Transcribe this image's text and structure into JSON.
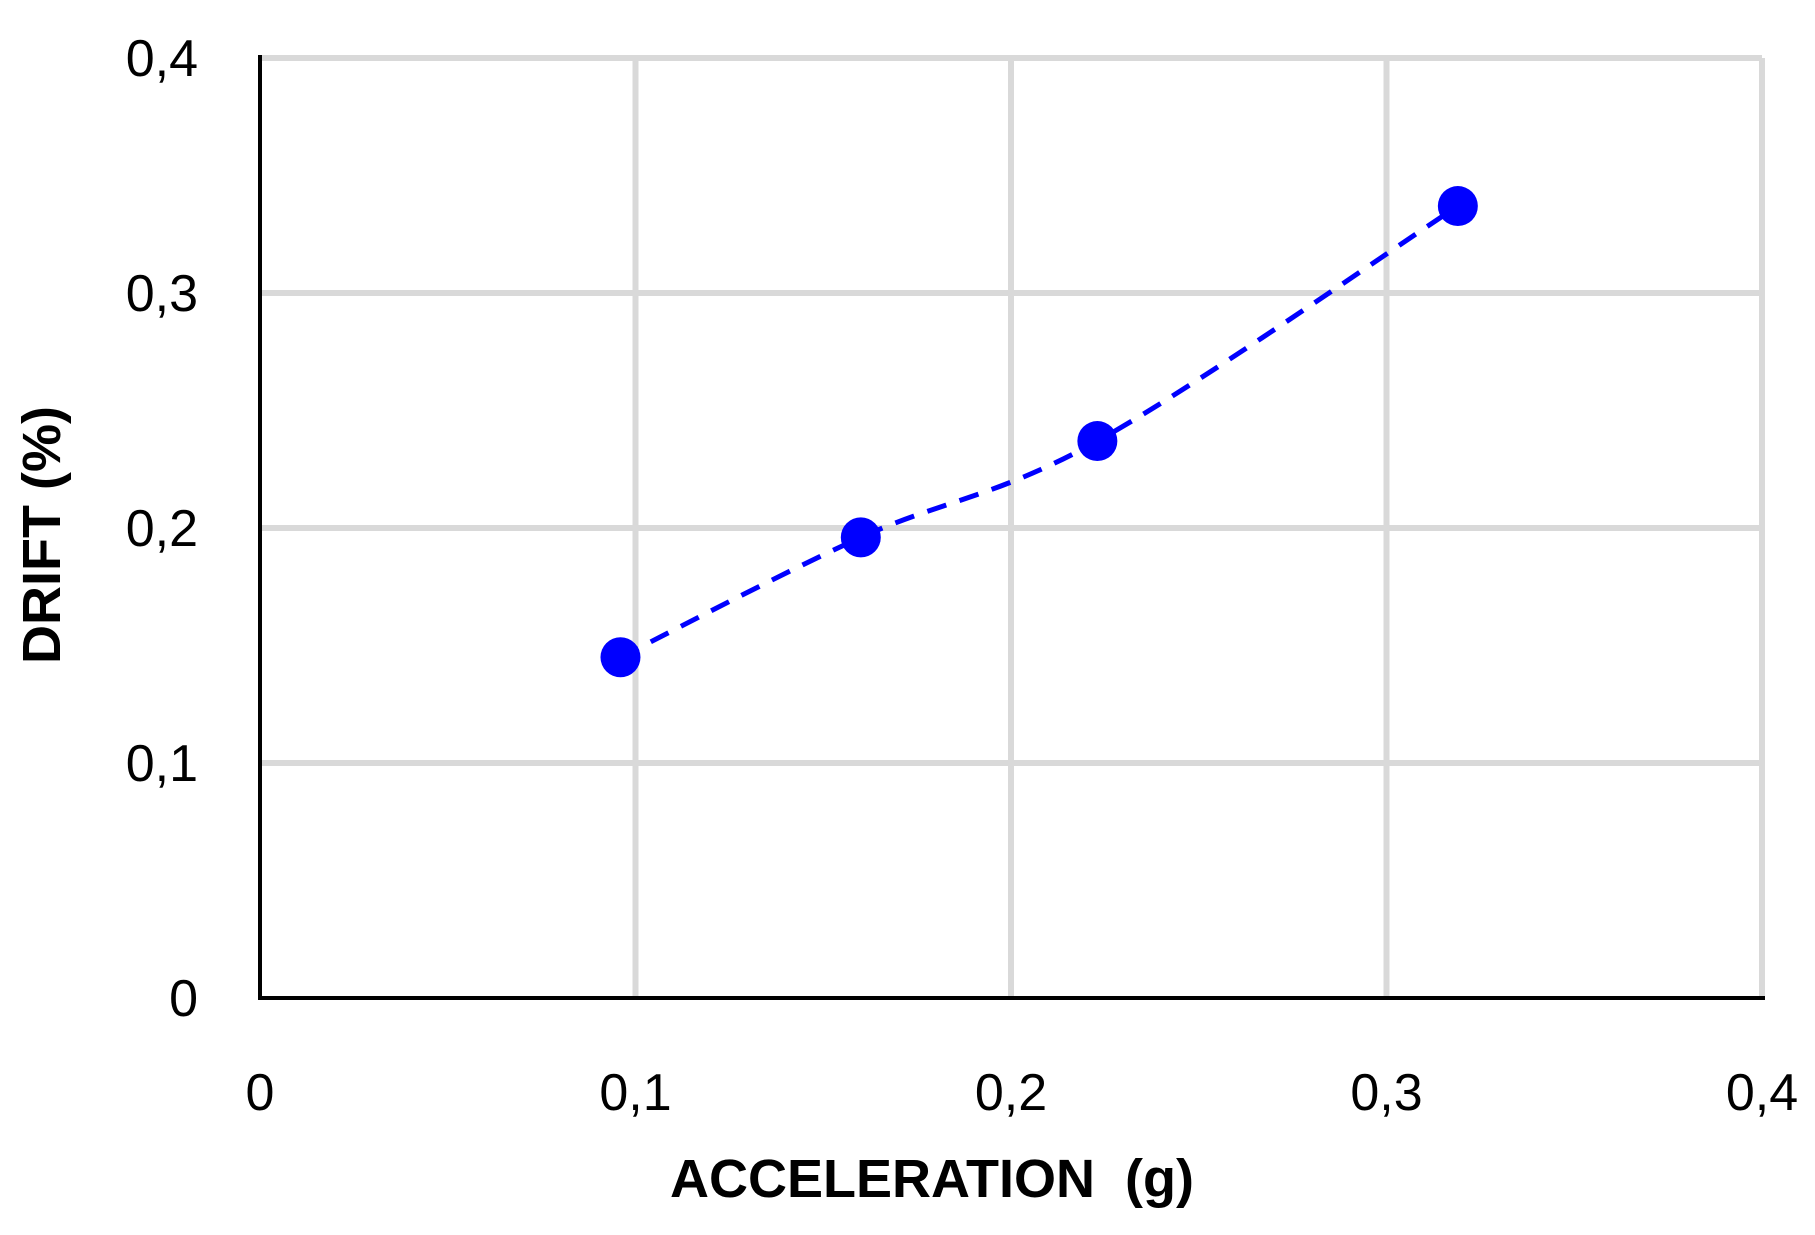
{
  "chart_data": {
    "type": "line",
    "title": "",
    "xlabel": "ACCELERATION  (g)",
    "ylabel": "DRIFT (%)",
    "xlim": [
      0,
      0.4
    ],
    "ylim": [
      0,
      0.4
    ],
    "x_ticks": [
      0,
      0.1,
      0.2,
      0.3,
      0.4
    ],
    "y_ticks": [
      0,
      0.1,
      0.2,
      0.3,
      0.4
    ],
    "x_tick_labels": [
      "0",
      "0,1",
      "0,2",
      "0,3",
      "0,4"
    ],
    "y_tick_labels": [
      "0",
      "0,1",
      "0,2",
      "0,3",
      "0,4"
    ],
    "grid": true,
    "legend": "none",
    "series": [
      {
        "line_style": "dashed",
        "marker": "circle",
        "color": "#0000ff",
        "x": [
          0.096,
          0.16,
          0.223,
          0.319
        ],
        "y": [
          0.145,
          0.196,
          0.237,
          0.337
        ]
      }
    ]
  },
  "colors": {
    "grid": "#d9d9d9",
    "axis": "#000000",
    "series": "#0000ff"
  }
}
